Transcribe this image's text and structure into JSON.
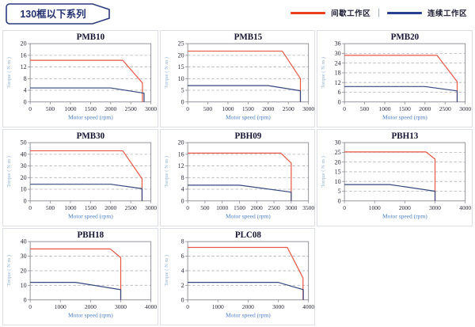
{
  "header": {
    "title": "130框以下系列",
    "legend": [
      {
        "label": "间歇工作区",
        "color": "#e8401f"
      },
      {
        "label": "连续工作区",
        "color": "#24408e"
      }
    ],
    "legend_separator": "|"
  },
  "colors": {
    "accent_navy": "#2b3a7d",
    "title_text": "#23306e",
    "chart_title_text": "#141432",
    "curve_red": "#e95744",
    "curve_blue": "#35477e",
    "axis": "#8a8a92",
    "grid": "#b2b2ba",
    "tick_text": "#2a2a3a",
    "xlabel_text": "#4b7fc4",
    "ylabel_text": "#8fb0d8"
  },
  "chart_data": [
    {
      "type": "line",
      "title": "PMB10",
      "xlabel": "Motor speed (rpm)",
      "ylabel": "Torque ( N·m )",
      "xlim": [
        0,
        3000
      ],
      "ylim": [
        0,
        20
      ],
      "xticks": [
        0,
        500,
        1000,
        1500,
        2000,
        2500,
        3000
      ],
      "yticks": [
        0,
        4,
        8,
        12,
        16,
        20
      ],
      "series": [
        {
          "name": "间歇工作区",
          "color": "#e95744",
          "points": [
            [
              0,
              14.3
            ],
            [
              2300,
              14.3
            ],
            [
              2790,
              6.5
            ],
            [
              2790,
              0
            ]
          ]
        },
        {
          "name": "连续工作区",
          "color": "#35477e",
          "points": [
            [
              0,
              4.8
            ],
            [
              2000,
              4.8
            ],
            [
              2830,
              3.0
            ],
            [
              2830,
              0
            ]
          ]
        }
      ]
    },
    {
      "type": "line",
      "title": "PMB15",
      "xlabel": "Motor speed (rpm)",
      "ylabel": "Torque ( N·m )",
      "xlim": [
        0,
        3000
      ],
      "ylim": [
        0,
        25
      ],
      "xticks": [
        0,
        500,
        1000,
        1500,
        2000,
        2500,
        3000
      ],
      "yticks": [
        0,
        5,
        10,
        15,
        20,
        25
      ],
      "series": [
        {
          "name": "间歇工作区",
          "color": "#e95744",
          "points": [
            [
              0,
              21.8
            ],
            [
              2350,
              21.8
            ],
            [
              2800,
              10.0
            ],
            [
              2800,
              0
            ]
          ]
        },
        {
          "name": "连续工作区",
          "color": "#35477e",
          "points": [
            [
              0,
              7.0
            ],
            [
              2000,
              7.0
            ],
            [
              2800,
              4.8
            ],
            [
              2800,
              0
            ]
          ]
        }
      ]
    },
    {
      "type": "line",
      "title": "PMB20",
      "xlabel": "Motor speed (rpm)",
      "ylabel": "Torque ( N·m )",
      "xlim": [
        0,
        3000
      ],
      "ylim": [
        0,
        36
      ],
      "xticks": [
        0,
        500,
        1000,
        1500,
        2000,
        2500,
        3000
      ],
      "yticks": [
        0,
        6,
        12,
        18,
        24,
        30,
        36
      ],
      "series": [
        {
          "name": "间歇工作区",
          "color": "#e95744",
          "points": [
            [
              0,
              28.8
            ],
            [
              2300,
              28.8
            ],
            [
              2800,
              12.5
            ],
            [
              2800,
              0
            ]
          ]
        },
        {
          "name": "连续工作区",
          "color": "#35477e",
          "points": [
            [
              0,
              9.5
            ],
            [
              2000,
              9.5
            ],
            [
              2800,
              6.8
            ],
            [
              2800,
              0
            ]
          ]
        }
      ]
    },
    {
      "type": "line",
      "title": "PMB30",
      "xlabel": "Motor speed (rpm)",
      "ylabel": "Torque ( N·m )",
      "xlim": [
        0,
        3000
      ],
      "ylim": [
        0,
        50
      ],
      "xticks": [
        0,
        500,
        1000,
        1500,
        2000,
        2500,
        3000
      ],
      "yticks": [
        0,
        10,
        20,
        30,
        40,
        50
      ],
      "series": [
        {
          "name": "间歇工作区",
          "color": "#e95744",
          "points": [
            [
              0,
              43.0
            ],
            [
              2300,
              43.0
            ],
            [
              2780,
              19.0
            ],
            [
              2780,
              0
            ]
          ]
        },
        {
          "name": "连续工作区",
          "color": "#35477e",
          "points": [
            [
              0,
              14.3
            ],
            [
              2000,
              14.3
            ],
            [
              2780,
              10.5
            ],
            [
              2780,
              0
            ]
          ]
        }
      ]
    },
    {
      "type": "line",
      "title": "PBH09",
      "xlabel": "Motor speed (rpm)",
      "ylabel": "Torque ( N·m )",
      "xlim": [
        0,
        3500
      ],
      "ylim": [
        0,
        20
      ],
      "xticks": [
        0,
        500,
        1000,
        1500,
        2000,
        2500,
        3000,
        3500
      ],
      "yticks": [
        0,
        4,
        8,
        12,
        16,
        20
      ],
      "series": [
        {
          "name": "间歇工作区",
          "color": "#e95744",
          "points": [
            [
              0,
              16.4
            ],
            [
              2700,
              16.4
            ],
            [
              3000,
              13.0
            ],
            [
              3000,
              0
            ]
          ]
        },
        {
          "name": "连续工作区",
          "color": "#35477e",
          "points": [
            [
              0,
              5.4
            ],
            [
              1500,
              5.4
            ],
            [
              3000,
              3.0
            ],
            [
              3000,
              0
            ]
          ]
        }
      ]
    },
    {
      "type": "line",
      "title": "PBH13",
      "xlabel": "Motor speed (rpm)",
      "ylabel": "Torque ( N·m )",
      "xlim": [
        0,
        4000
      ],
      "ylim": [
        0,
        30
      ],
      "xticks": [
        0,
        1000,
        2000,
        3000,
        4000
      ],
      "yticks": [
        0,
        5,
        10,
        15,
        20,
        25,
        30
      ],
      "series": [
        {
          "name": "间歇工作区",
          "color": "#e95744",
          "points": [
            [
              0,
              25.2
            ],
            [
              2700,
              25.2
            ],
            [
              3000,
              21.5
            ],
            [
              3000,
              0
            ]
          ]
        },
        {
          "name": "连续工作区",
          "color": "#35477e",
          "points": [
            [
              0,
              8.4
            ],
            [
              1500,
              8.4
            ],
            [
              3000,
              5.0
            ],
            [
              3000,
              0
            ]
          ]
        }
      ]
    },
    {
      "type": "line",
      "title": "PBH18",
      "xlabel": "Motor speed (rpm)",
      "ylabel": "Torque ( N·m )",
      "xlim": [
        0,
        4000
      ],
      "ylim": [
        0,
        40
      ],
      "xticks": [
        0,
        1000,
        2000,
        3000,
        4000
      ],
      "yticks": [
        0,
        10,
        20,
        30,
        40
      ],
      "series": [
        {
          "name": "间歇工作区",
          "color": "#e95744",
          "points": [
            [
              0,
              35.0
            ],
            [
              2650,
              35.0
            ],
            [
              3000,
              29.0
            ],
            [
              3000,
              0
            ]
          ]
        },
        {
          "name": "连续工作区",
          "color": "#35477e",
          "points": [
            [
              0,
              12.0
            ],
            [
              1500,
              12.0
            ],
            [
              3000,
              7.0
            ],
            [
              3000,
              0
            ]
          ]
        }
      ]
    },
    {
      "type": "line",
      "title": "PLC08",
      "xlabel": "Motor speed (rpm)",
      "ylabel": "Torque ( N·m )",
      "xlim": [
        0,
        4000
      ],
      "ylim": [
        0,
        8
      ],
      "xticks": [
        0,
        1000,
        2000,
        3000,
        4000
      ],
      "yticks": [
        0,
        2,
        4,
        6,
        8
      ],
      "series": [
        {
          "name": "间歇工作区",
          "color": "#e95744",
          "points": [
            [
              0,
              7.2
            ],
            [
              3300,
              7.2
            ],
            [
              3820,
              3.0
            ],
            [
              3820,
              0
            ]
          ]
        },
        {
          "name": "连续工作区",
          "color": "#35477e",
          "points": [
            [
              0,
              2.4
            ],
            [
              3000,
              2.4
            ],
            [
              3830,
              1.4
            ],
            [
              3830,
              0
            ]
          ]
        }
      ]
    }
  ]
}
